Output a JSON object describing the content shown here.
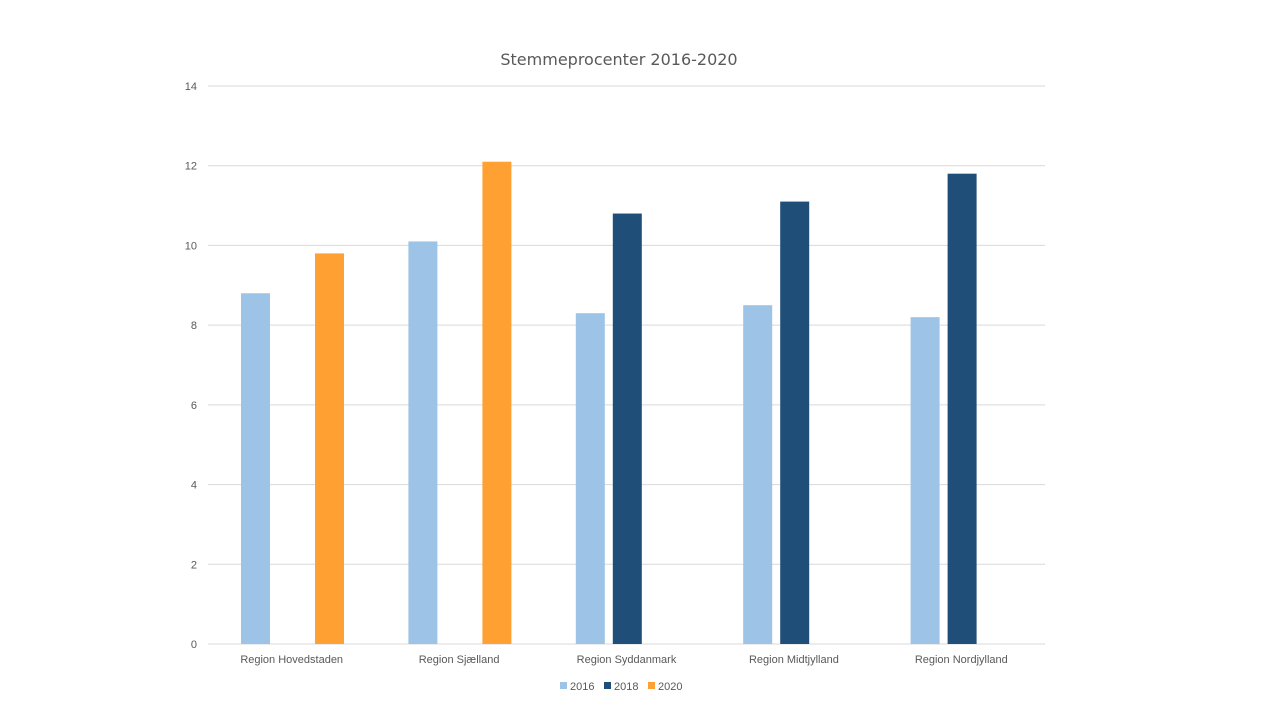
{
  "chart_data": {
    "type": "bar",
    "title": "Stemmeprocenter 2016-2020",
    "xlabel": "",
    "ylabel": "",
    "ylim": [
      0,
      14
    ],
    "yticks": [
      "0",
      "2",
      "4",
      "6",
      "8",
      "10",
      "12",
      "14"
    ],
    "grid": true,
    "legend_position": "bottom",
    "categories": [
      "Region Hovedstaden",
      "Region Sjælland",
      "Region Syddanmark",
      "Region Midtjylland",
      "Region Nordjylland"
    ],
    "series": [
      {
        "name": "2016",
        "color": "#9dc3e6",
        "values": [
          8.8,
          10.1,
          8.3,
          8.5,
          8.2
        ]
      },
      {
        "name": "2018",
        "color": "#1f4e79",
        "values": [
          null,
          null,
          10.8,
          11.1,
          11.8
        ]
      },
      {
        "name": "2020",
        "color": "#ffa033",
        "values": [
          9.8,
          12.1,
          null,
          null,
          null
        ]
      }
    ]
  }
}
